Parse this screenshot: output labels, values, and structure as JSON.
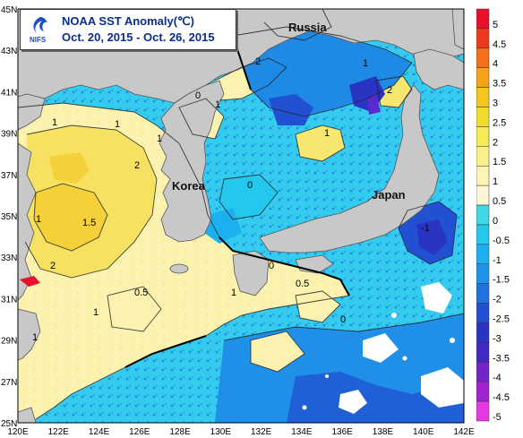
{
  "title": {
    "line1": "NOAA SST Anomaly(℃)",
    "line2": "Oct. 20, 2015 - Oct. 26, 2015",
    "logo_text": "NIFS"
  },
  "map": {
    "lat_labels": [
      "45N",
      "43N",
      "41N",
      "39N",
      "37N",
      "35N",
      "33N",
      "31N",
      "29N",
      "27N",
      "25N"
    ],
    "lon_labels": [
      "120E",
      "122E",
      "124E",
      "126E",
      "128E",
      "130E",
      "132E",
      "134E",
      "136E",
      "138E",
      "140E",
      "142E"
    ],
    "region_labels": [
      "Russia",
      "Korea",
      "Japan"
    ],
    "contour_labels": [
      "1",
      "2",
      "1",
      "1.5",
      "1",
      "2",
      "1",
      "0.5",
      "1",
      "0",
      "1",
      "2",
      "1",
      "0",
      "1",
      "0.5",
      "0",
      "2",
      "1",
      "-1",
      "0",
      "1"
    ],
    "extent": {
      "lat": [
        25,
        45
      ],
      "lon": [
        120,
        142
      ]
    }
  },
  "legend": {
    "labels": [
      "5",
      "4.5",
      "4",
      "3.5",
      "3",
      "2.5",
      "2",
      "1.5",
      "1",
      "0.5",
      "0",
      "-0.5",
      "-1",
      "-1.5",
      "-2",
      "-2.5",
      "-3",
      "-3.5",
      "-4",
      "-4.5",
      "-5"
    ],
    "colors": [
      "#e8102a",
      "#ee3a1c",
      "#f4701a",
      "#f7a21a",
      "#f6c620",
      "#f2dc2a",
      "#f7ea55",
      "#f9f188",
      "#fbf4b4",
      "#fcf7d2",
      "#3fd8e6",
      "#23c8ec",
      "#1cb0f0",
      "#1d93ea",
      "#1f72e0",
      "#2150d2",
      "#2a34c2",
      "#4428c4",
      "#7424c8",
      "#a322d0",
      "#e838e6"
    ]
  }
}
